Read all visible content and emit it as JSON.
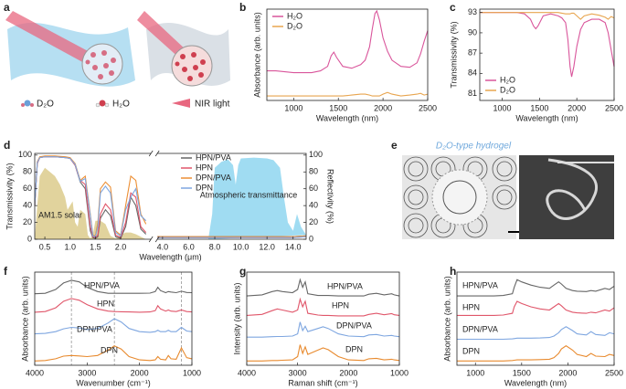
{
  "panel_a": {
    "label": "a",
    "legend": [
      "D₂O",
      "H₂O",
      "NIR light"
    ]
  },
  "panel_e": {
    "label": "e",
    "title": "D₂O-type hydrogel"
  },
  "chart_data": [
    {
      "type": "line",
      "panel": "b",
      "xlabel": "Wavelength (nm)",
      "ylabel": "Absorbance (arb. units)",
      "xlim": [
        700,
        2500
      ],
      "ylim": [
        0,
        1.02
      ],
      "xticks": [
        1000,
        1500,
        2000,
        2500
      ],
      "legend": "upper left",
      "x": [
        700,
        800,
        900,
        1000,
        1100,
        1200,
        1300,
        1380,
        1420,
        1450,
        1480,
        1550,
        1650,
        1750,
        1800,
        1850,
        1880,
        1910,
        1930,
        1960,
        2000,
        2050,
        2100,
        2200,
        2300,
        2380,
        2420,
        2460,
        2500
      ],
      "series": [
        {
          "name": "H₂O",
          "color": "#d9559b",
          "values": [
            0.33,
            0.33,
            0.32,
            0.31,
            0.31,
            0.31,
            0.33,
            0.38,
            0.5,
            0.54,
            0.48,
            0.38,
            0.36,
            0.4,
            0.45,
            0.6,
            0.8,
            0.97,
            1.0,
            0.9,
            0.7,
            0.55,
            0.45,
            0.38,
            0.37,
            0.42,
            0.52,
            0.66,
            0.78
          ]
        },
        {
          "name": "D₂O",
          "color": "#e8a54f",
          "values": [
            0.05,
            0.05,
            0.05,
            0.05,
            0.05,
            0.05,
            0.05,
            0.05,
            0.05,
            0.05,
            0.05,
            0.05,
            0.06,
            0.07,
            0.07,
            0.06,
            0.05,
            0.05,
            0.05,
            0.05,
            0.07,
            0.09,
            0.07,
            0.05,
            0.06,
            0.07,
            0.08,
            0.06,
            0.07
          ]
        }
      ]
    },
    {
      "type": "line",
      "panel": "c",
      "xlabel": "Wavelength (nm)",
      "ylabel": "Transmissivity (%)",
      "xlim": [
        700,
        2500
      ],
      "ylim": [
        80,
        93.5
      ],
      "xticks": [
        1000,
        1500,
        2000,
        2500
      ],
      "yticks": [
        81,
        84,
        87,
        90,
        93
      ],
      "legend": "lower left",
      "x": [
        700,
        800,
        900,
        1000,
        1100,
        1200,
        1300,
        1380,
        1420,
        1450,
        1480,
        1550,
        1650,
        1750,
        1800,
        1850,
        1880,
        1910,
        1930,
        1960,
        2000,
        2050,
        2100,
        2200,
        2300,
        2380,
        2420,
        2460,
        2500
      ],
      "series": [
        {
          "name": "H₂O",
          "color": "#d9559b",
          "values": [
            93,
            93,
            93,
            93,
            93,
            93,
            92.8,
            92,
            91,
            90.6,
            91,
            92.5,
            92.8,
            92.5,
            92.2,
            91.5,
            89,
            85,
            83.5,
            85,
            88,
            90.5,
            91.5,
            92,
            92,
            91.5,
            90,
            87.5,
            85
          ]
        },
        {
          "name": "D₂O",
          "color": "#e8a54f",
          "values": [
            93,
            93,
            93,
            93,
            93,
            93,
            93,
            93,
            93,
            93,
            93,
            93,
            93,
            93,
            92.9,
            92.8,
            92.8,
            92.8,
            92.9,
            92.9,
            92.5,
            92,
            92.5,
            92.8,
            92.6,
            92.3,
            92,
            92.4,
            92.2
          ]
        }
      ]
    },
    {
      "type": "line",
      "panel": "d",
      "xlabel": "Wavelength (μm)",
      "ylabel": "Transmissivity (%)",
      "y2label": "Reflectivity (%)",
      "xlim": [
        0.3,
        15
      ],
      "xbreak": [
        2.6,
        3.6
      ],
      "ylim": [
        0,
        102
      ],
      "y2lim": [
        0,
        102
      ],
      "xticks": [
        0.5,
        {
          "value": 1,
          "label": "1.0"
        },
        1.5,
        {
          "value": 2,
          "label": "2.0"
        },
        {
          "value": 4,
          "label": "4.0"
        },
        {
          "value": 6,
          "label": "6.0"
        },
        {
          "value": 8,
          "label": "8.0"
        },
        {
          "value": 10,
          "label": "10.0"
        },
        {
          "value": 12,
          "label": "12.0"
        },
        {
          "value": 14,
          "label": "14.0"
        }
      ],
      "yticks": [
        0,
        20,
        40,
        60,
        80,
        100
      ],
      "y2ticks": [
        0,
        20,
        40,
        60,
        80,
        100
      ],
      "legend": "upper center",
      "x": [
        0.3,
        0.35,
        0.4,
        0.5,
        0.7,
        0.9,
        1.0,
        1.1,
        1.15,
        1.2,
        1.3,
        1.4,
        1.45,
        1.5,
        1.55,
        1.6,
        1.7,
        1.8,
        1.9,
        2.0,
        2.1,
        2.2,
        2.3,
        2.4,
        2.5,
        3.0,
        3.6,
        4,
        5,
        6,
        8,
        10,
        12,
        14,
        15
      ],
      "series": [
        {
          "name": "AM1.5 solar",
          "kind": "area",
          "color": "#dccb8c",
          "x": [
            0.3,
            0.35,
            0.4,
            0.5,
            0.6,
            0.7,
            0.8,
            0.9,
            0.95,
            1.0,
            1.05,
            1.1,
            1.15,
            1.2,
            1.3,
            1.35,
            1.4,
            1.45,
            1.5,
            1.6,
            1.7,
            1.8,
            1.9,
            2.0,
            2.1,
            2.2,
            2.3,
            2.4,
            2.5
          ],
          "values": [
            0,
            40,
            75,
            85,
            80,
            75,
            65,
            50,
            35,
            40,
            45,
            20,
            15,
            35,
            30,
            5,
            1,
            5,
            22,
            22,
            18,
            4,
            1,
            5,
            8,
            8,
            6,
            3,
            0
          ]
        },
        {
          "name": "Atmospheric transmittance",
          "kind": "area",
          "color": "#8fd6f0",
          "axis": "y2",
          "x": [
            7.5,
            7.8,
            8,
            8.5,
            9,
            9.4,
            9.6,
            9.8,
            10,
            11,
            12,
            12.5,
            13,
            13.3,
            13.6,
            14,
            14.3,
            14.6,
            15
          ],
          "values": [
            0,
            30,
            85,
            92,
            95,
            88,
            65,
            88,
            96,
            97,
            96,
            94,
            85,
            50,
            20,
            10,
            30,
            15,
            5
          ]
        },
        {
          "name": "HPN/PVA",
          "color": "#666666",
          "values": [
            40,
            90,
            97,
            98,
            98,
            97,
            96,
            88,
            78,
            68,
            60,
            10,
            2,
            1,
            3,
            25,
            35,
            28,
            3,
            1,
            15,
            50,
            40,
            12,
            6,
            null,
            3,
            3,
            3,
            3,
            3,
            3,
            3,
            3,
            4
          ]
        },
        {
          "name": "HPN",
          "color": "#e0566a",
          "values": [
            40,
            90,
            97,
            98,
            98,
            97,
            96,
            88,
            78,
            70,
            65,
            15,
            3,
            2,
            5,
            30,
            42,
            35,
            5,
            2,
            20,
            55,
            50,
            15,
            8,
            null,
            2,
            2,
            2,
            2,
            2,
            2,
            2,
            2,
            3
          ]
        },
        {
          "name": "DPN/PVA",
          "color": "#ec8f35",
          "values": [
            40,
            92,
            98,
            99,
            99,
            98,
            97,
            90,
            80,
            70,
            75,
            30,
            5,
            4,
            20,
            60,
            68,
            62,
            10,
            5,
            40,
            75,
            70,
            30,
            18,
            null,
            3,
            3,
            3,
            3,
            3,
            3,
            3,
            3,
            4
          ]
        },
        {
          "name": "DPN",
          "color": "#7ea6e0",
          "values": [
            40,
            91,
            97,
            98,
            98,
            97,
            96,
            89,
            79,
            69,
            72,
            28,
            4,
            3,
            15,
            55,
            63,
            55,
            8,
            4,
            35,
            50,
            60,
            28,
            22,
            null,
            2,
            2,
            2,
            2,
            2,
            2,
            2,
            2,
            3
          ]
        }
      ]
    },
    {
      "type": "line",
      "panel": "f",
      "xlabel": "Wavenumber (cm⁻¹)",
      "ylabel": "Absorbance (arb. units)",
      "xlim": [
        4000,
        1000
      ],
      "ylim": [
        0,
        4.3
      ],
      "xticks": [
        4000,
        3000,
        2000,
        1000
      ],
      "vlines": [
        3300,
        2480,
        1200
      ],
      "legend": "inline",
      "x": [
        4000,
        3800,
        3600,
        3450,
        3300,
        3150,
        3000,
        2800,
        2600,
        2480,
        2350,
        2200,
        2000,
        1800,
        1700,
        1650,
        1600,
        1500,
        1450,
        1400,
        1300,
        1200,
        1100,
        1000
      ],
      "series": [
        {
          "name": "HPN/PVA",
          "color": "#666666",
          "values": [
            3.3,
            3.32,
            3.5,
            3.8,
            3.92,
            3.85,
            3.6,
            3.4,
            3.32,
            3.32,
            3.32,
            3.32,
            3.32,
            3.33,
            3.4,
            3.6,
            3.45,
            3.35,
            3.4,
            3.38,
            3.35,
            3.42,
            3.36,
            3.35
          ]
        },
        {
          "name": "HPN",
          "color": "#e0566a",
          "values": [
            2.45,
            2.48,
            2.65,
            2.95,
            3.08,
            3.0,
            2.8,
            2.6,
            2.5,
            2.48,
            2.47,
            2.46,
            2.45,
            2.46,
            2.52,
            2.75,
            2.6,
            2.5,
            2.55,
            2.5,
            2.48,
            2.55,
            2.48,
            2.46
          ]
        },
        {
          "name": "DPN/PVA",
          "color": "#7ea6e0",
          "values": [
            1.45,
            1.47,
            1.55,
            1.68,
            1.75,
            1.72,
            1.65,
            1.7,
            1.95,
            2.15,
            2.0,
            1.7,
            1.55,
            1.52,
            1.55,
            1.62,
            1.55,
            1.55,
            1.62,
            1.55,
            1.55,
            1.75,
            1.58,
            1.55
          ]
        },
        {
          "name": "DPN",
          "color": "#e88a2e",
          "values": [
            0.2,
            0.22,
            0.3,
            0.42,
            0.45,
            0.43,
            0.4,
            0.45,
            0.7,
            0.9,
            0.75,
            0.4,
            0.25,
            0.22,
            0.25,
            0.4,
            0.28,
            0.25,
            0.45,
            0.3,
            0.28,
            0.8,
            0.35,
            0.3
          ]
        }
      ]
    },
    {
      "type": "line",
      "panel": "g",
      "xlabel": "Raman shift (cm⁻¹)",
      "ylabel": "Intensity (arb. units)",
      "xlim": [
        4000,
        1000
      ],
      "ylim": [
        0,
        4.3
      ],
      "xticks": [
        4000,
        3000,
        2000,
        1000
      ],
      "legend": "inline",
      "x": [
        4000,
        3700,
        3500,
        3400,
        3300,
        3100,
        3000,
        2950,
        2900,
        2850,
        2800,
        2600,
        2500,
        2400,
        2200,
        2000,
        1700,
        1600,
        1450,
        1300,
        1150,
        1100,
        1000
      ],
      "series": [
        {
          "name": "HPN/PVA",
          "color": "#666666",
          "values": [
            3.2,
            3.25,
            3.4,
            3.45,
            3.4,
            3.35,
            3.5,
            3.95,
            3.6,
            3.85,
            3.3,
            3.22,
            3.22,
            3.22,
            3.2,
            3.2,
            3.2,
            3.28,
            3.32,
            3.25,
            3.3,
            3.25,
            3.2
          ]
        },
        {
          "name": "HPN",
          "color": "#e0566a",
          "values": [
            2.3,
            2.35,
            2.52,
            2.6,
            2.55,
            2.45,
            2.55,
            3.05,
            2.7,
            2.95,
            2.4,
            2.32,
            2.3,
            2.3,
            2.28,
            2.28,
            2.28,
            2.35,
            2.4,
            2.33,
            2.38,
            2.33,
            2.3
          ]
        },
        {
          "name": "DPN/PVA",
          "color": "#7ea6e0",
          "values": [
            1.3,
            1.3,
            1.32,
            1.33,
            1.33,
            1.35,
            1.45,
            2.0,
            1.6,
            1.8,
            1.55,
            1.7,
            1.78,
            1.7,
            1.45,
            1.35,
            1.32,
            1.4,
            1.42,
            1.35,
            1.38,
            1.35,
            1.32
          ]
        },
        {
          "name": "DPN",
          "color": "#e88a2e",
          "values": [
            0.2,
            0.2,
            0.22,
            0.22,
            0.23,
            0.25,
            0.4,
            0.95,
            0.55,
            0.85,
            0.5,
            0.7,
            0.8,
            0.72,
            0.4,
            0.25,
            0.22,
            0.3,
            0.32,
            0.25,
            0.28,
            0.25,
            0.22
          ]
        }
      ]
    },
    {
      "type": "line",
      "panel": "h",
      "xlabel": "Wavelength (nm)",
      "ylabel": "Absorbance (arb. units)",
      "xlim": [
        800,
        2500
      ],
      "ylim": [
        0,
        4.3
      ],
      "xticks": [
        1000,
        1500,
        2000,
        2500
      ],
      "legend": "inline",
      "x": [
        800,
        900,
        1000,
        1100,
        1200,
        1300,
        1400,
        1420,
        1450,
        1500,
        1600,
        1700,
        1800,
        1850,
        1900,
        1930,
        1980,
        2050,
        2100,
        2200,
        2250,
        2300,
        2400,
        2450,
        2500
      ],
      "series": [
        {
          "name": "HPN/PVA",
          "color": "#666666",
          "values": [
            3.2,
            3.2,
            3.2,
            3.2,
            3.2,
            3.22,
            3.3,
            3.6,
            3.95,
            3.85,
            3.7,
            3.6,
            3.55,
            3.7,
            3.85,
            3.75,
            3.55,
            3.45,
            3.42,
            3.4,
            3.45,
            3.42,
            3.55,
            3.5,
            3.65
          ]
        },
        {
          "name": "HPN",
          "color": "#e0566a",
          "values": [
            2.3,
            2.3,
            2.3,
            2.3,
            2.3,
            2.32,
            2.4,
            2.7,
            2.95,
            2.85,
            2.7,
            2.6,
            2.55,
            2.7,
            2.85,
            2.75,
            2.55,
            2.45,
            2.42,
            2.4,
            2.45,
            2.42,
            2.55,
            2.5,
            2.65
          ]
        },
        {
          "name": "DPN/PVA",
          "color": "#7ea6e0",
          "values": [
            1.2,
            1.2,
            1.2,
            1.2,
            1.2,
            1.2,
            1.22,
            1.23,
            1.25,
            1.25,
            1.25,
            1.26,
            1.28,
            1.35,
            1.5,
            1.65,
            1.78,
            1.6,
            1.45,
            1.4,
            1.55,
            1.42,
            1.38,
            1.5,
            1.45
          ]
        },
        {
          "name": "DPN",
          "color": "#e88a2e",
          "values": [
            0.2,
            0.2,
            0.2,
            0.2,
            0.2,
            0.2,
            0.22,
            0.23,
            0.25,
            0.25,
            0.25,
            0.26,
            0.28,
            0.35,
            0.55,
            0.75,
            0.9,
            0.7,
            0.5,
            0.4,
            0.55,
            0.42,
            0.4,
            0.5,
            0.45
          ]
        }
      ]
    }
  ]
}
